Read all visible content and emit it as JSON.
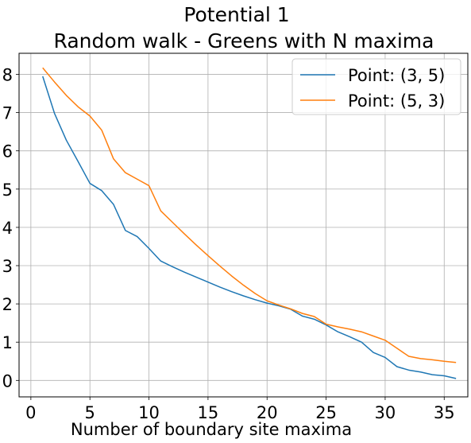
{
  "chart_data": {
    "type": "line",
    "title_lines": [
      "Potential 1",
      "Random walk - Greens with N maxima"
    ],
    "xlabel": "Number of boundary site maxima",
    "ylabel": "",
    "xlim": [
      -1,
      37
    ],
    "ylim": [
      -0.43,
      8.55
    ],
    "xticks": [
      0,
      5,
      10,
      15,
      20,
      25,
      30,
      35
    ],
    "yticks": [
      0,
      1,
      2,
      3,
      4,
      5,
      6,
      7,
      8
    ],
    "grid": true,
    "legend_position": "top-right",
    "series": [
      {
        "name": "Point: (3, 5)",
        "color": "#1f77b4",
        "x": [
          1,
          2,
          3,
          4,
          5,
          6,
          7,
          8,
          9,
          10,
          11,
          12,
          13,
          14,
          15,
          16,
          17,
          18,
          19,
          20,
          21,
          22,
          23,
          24,
          25,
          26,
          27,
          28,
          29,
          30,
          31,
          32,
          33,
          34,
          35,
          36
        ],
        "y": [
          7.95,
          6.98,
          6.28,
          5.72,
          5.15,
          4.96,
          4.6,
          3.92,
          3.76,
          3.45,
          3.12,
          2.97,
          2.83,
          2.7,
          2.57,
          2.44,
          2.32,
          2.21,
          2.11,
          2.02,
          1.95,
          1.86,
          1.68,
          1.6,
          1.45,
          1.27,
          1.14,
          1.0,
          0.73,
          0.6,
          0.36,
          0.27,
          0.22,
          0.15,
          0.12,
          0.05
        ]
      },
      {
        "name": "Point: (5, 3)",
        "color": "#ff7f0e",
        "x": [
          1,
          2,
          3,
          4,
          5,
          6,
          7,
          8,
          9,
          10,
          11,
          12,
          13,
          14,
          15,
          16,
          17,
          18,
          19,
          20,
          21,
          22,
          23,
          24,
          25,
          26,
          27,
          28,
          29,
          30,
          31,
          32,
          33,
          34,
          35,
          36
        ],
        "y": [
          8.17,
          7.8,
          7.45,
          7.15,
          6.91,
          6.54,
          5.79,
          5.43,
          5.26,
          5.09,
          4.43,
          4.13,
          3.83,
          3.54,
          3.26,
          2.99,
          2.73,
          2.49,
          2.27,
          2.08,
          1.97,
          1.87,
          1.75,
          1.67,
          1.47,
          1.4,
          1.34,
          1.27,
          1.16,
          1.05,
          0.84,
          0.63,
          0.57,
          0.54,
          0.5,
          0.47
        ]
      }
    ]
  }
}
